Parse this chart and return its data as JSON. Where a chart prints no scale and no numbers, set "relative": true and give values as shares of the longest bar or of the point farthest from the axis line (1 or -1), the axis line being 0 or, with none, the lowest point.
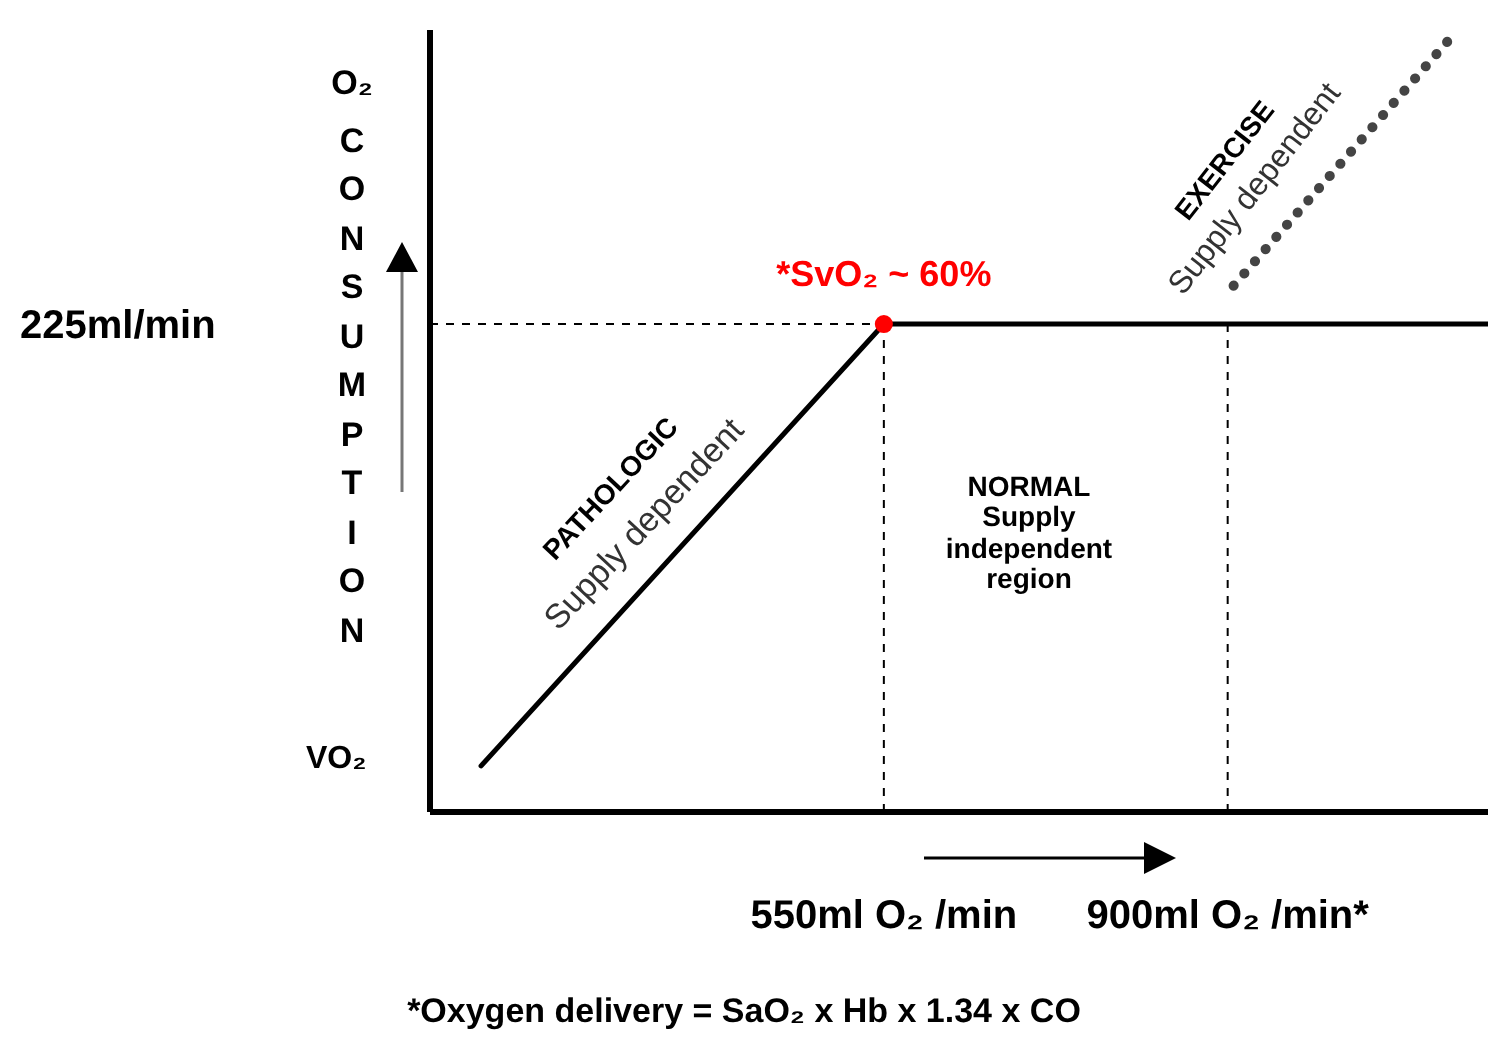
{
  "chart_data": {
    "type": "line",
    "ylabel": "O₂ CONSUMPTION",
    "relative": true,
    "xlim": [
      88,
      1165
    ],
    "xticks": [
      {
        "value": 550,
        "label": "550ml O₂ /min"
      },
      {
        "value": 900,
        "label": "900ml O₂ /min*"
      }
    ],
    "series": [
      {
        "color": "#000000",
        "line_style": "solid",
        "marker": "none",
        "x": [
          140,
          550,
          1165
        ],
        "values": [
          0.059,
          0.624,
          0.624
        ]
      },
      {
        "color": "#444444",
        "line_style": "dotted",
        "marker": "none",
        "x": [
          906,
          1134
        ],
        "values": [
          0.673,
          1
        ]
      },
      {
        "type": "scatter",
        "color": "#ff0000",
        "marker": "circle",
        "x": [
          550
        ],
        "values": [
          0.624
        ]
      }
    ],
    "ref_lines": [
      {
        "axis": "y",
        "value": 0.624,
        "label": "225ml/min",
        "line_style": "dashed",
        "color": "#000000"
      },
      {
        "axis": "x",
        "value": 550,
        "line_style": "dashed",
        "color": "#000000"
      },
      {
        "axis": "x",
        "value": 900,
        "line_style": "dashed",
        "color": "#000000"
      }
    ],
    "annotations": [
      {
        "text": "*SvO₂ ~ 60%",
        "x": 550,
        "y": 0.624
      },
      "PATHOLOGIC",
      "Supply dependent",
      "NORMAL Supply independent region",
      "EXERCISE",
      "Supply dependent",
      "VO₂",
      "*Oxygen delivery = SaO₂ x Hb x 1.34 x CO"
    ],
    "grid": false
  }
}
